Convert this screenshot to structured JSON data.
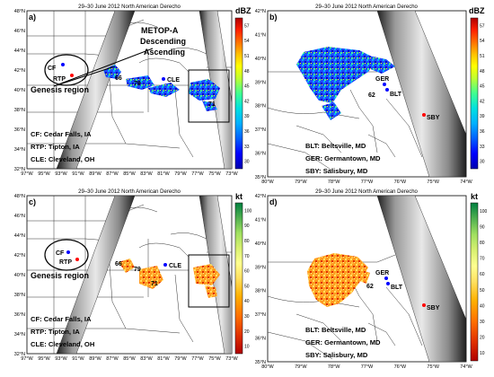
{
  "colors": {
    "dbz_scale": [
      "#0000b0",
      "#0000ff",
      "#0060ff",
      "#00b0ff",
      "#00e0e0",
      "#40ff90",
      "#a0ff40",
      "#ffff00",
      "#ffc000",
      "#ff8000",
      "#ff2000",
      "#e00000",
      "#b00000"
    ],
    "kt_scale": [
      "#b00000",
      "#e03000",
      "#ff7000",
      "#ffb000",
      "#ffe060",
      "#ffff90",
      "#d8f070",
      "#a0e060",
      "#60c050",
      "#20a050",
      "#008040"
    ],
    "genesis_ellipse": "#000000",
    "marker_blue": "#0000ff",
    "marker_red": "#ff0000"
  },
  "panels": [
    {
      "id": "a",
      "label": "a)",
      "title": "29–30 June 2012 North American Derecho",
      "colorbar_unit": "dBZ",
      "colorbar_ticks": [
        "30",
        "33",
        "36",
        "39",
        "42",
        "45",
        "48",
        "51",
        "54",
        "57"
      ],
      "lon_ticks": [
        "97°W",
        "95°W",
        "93°W",
        "91°W",
        "89°W",
        "87°W",
        "85°W",
        "83°W",
        "81°W",
        "79°W",
        "77°W",
        "75°W",
        "73°W"
      ],
      "lat_ticks": [
        "48°N",
        "46°N",
        "44°N",
        "42°N",
        "40°N",
        "38°N",
        "36°N",
        "34°N",
        "32°N"
      ],
      "satellite_label": "METOP-A",
      "swath_labels": [
        "Descending",
        "Ascending"
      ],
      "region_label": "Genesis region",
      "legend": [
        "CF: Cedar Falls, IA",
        "RTP: Tipton, IA",
        "CLE: Cleveland, OH"
      ],
      "cities": {
        "cf": "CF",
        "rtp": "RTP",
        "cle": "CLE"
      },
      "markers": [
        "66",
        "79",
        "71"
      ]
    },
    {
      "id": "b",
      "label": "b)",
      "title": "29–30 June 2012 North American Derecho",
      "colorbar_unit": "dBZ",
      "colorbar_ticks": [
        "30",
        "33",
        "36",
        "39",
        "42",
        "45",
        "48",
        "51",
        "54",
        "57"
      ],
      "lon_ticks": [
        "80°W",
        "79°W",
        "78°W",
        "77°W",
        "76°W",
        "75°W",
        "74°W"
      ],
      "lat_ticks": [
        "42°N",
        "41°N",
        "40°N",
        "39°N",
        "38°N",
        "37°N",
        "36°N",
        "35°N"
      ],
      "cities": {
        "ger": "GER",
        "blt": "BLT",
        "sby": "SBY"
      },
      "markers": [
        "62"
      ],
      "legend": [
        "BLT: Beltsville, MD",
        "GER: Germantown, MD",
        "SBY: Salisbury, MD"
      ]
    },
    {
      "id": "c",
      "label": "c)",
      "title": "29–30 June 2012 North American Derecho",
      "colorbar_unit": "kt",
      "colorbar_ticks": [
        "10",
        "20",
        "30",
        "40",
        "50",
        "60",
        "70",
        "80",
        "90",
        "100"
      ],
      "lon_ticks": [
        "97°W",
        "95°W",
        "93°W",
        "91°W",
        "89°W",
        "87°W",
        "85°W",
        "83°W",
        "81°W",
        "79°W",
        "77°W",
        "75°W",
        "73°W"
      ],
      "lat_ticks": [
        "48°N",
        "46°N",
        "44°N",
        "42°N",
        "40°N",
        "38°N",
        "36°N",
        "34°N",
        "32°N"
      ],
      "region_label": "Genesis region",
      "legend": [
        "CF: Cedar Falls, IA",
        "RTP: Tipton, IA",
        "CLE: Cleveland, OH"
      ],
      "cities": {
        "cf": "CF",
        "rtp": "RTP",
        "cle": "CLE"
      },
      "markers": [
        "66",
        "79",
        "71"
      ]
    },
    {
      "id": "d",
      "label": "d)",
      "title": "29–30 June 2012 North American Derecho",
      "colorbar_unit": "kt",
      "colorbar_ticks": [
        "10",
        "20",
        "30",
        "40",
        "50",
        "60",
        "70",
        "80",
        "90",
        "100"
      ],
      "lon_ticks": [
        "80°W",
        "79°W",
        "78°W",
        "77°W",
        "76°W",
        "75°W",
        "74°W"
      ],
      "lat_ticks": [
        "42°N",
        "41°N",
        "40°N",
        "39°N",
        "38°N",
        "37°N",
        "36°N",
        "35°N"
      ],
      "cities": {
        "ger": "GER",
        "blt": "BLT",
        "sby": "SBY"
      },
      "markers": [
        "62"
      ],
      "legend": [
        "BLT: Beltsville, MD",
        "GER: Germantown, MD",
        "SBY: Salisbury, MD"
      ]
    }
  ]
}
